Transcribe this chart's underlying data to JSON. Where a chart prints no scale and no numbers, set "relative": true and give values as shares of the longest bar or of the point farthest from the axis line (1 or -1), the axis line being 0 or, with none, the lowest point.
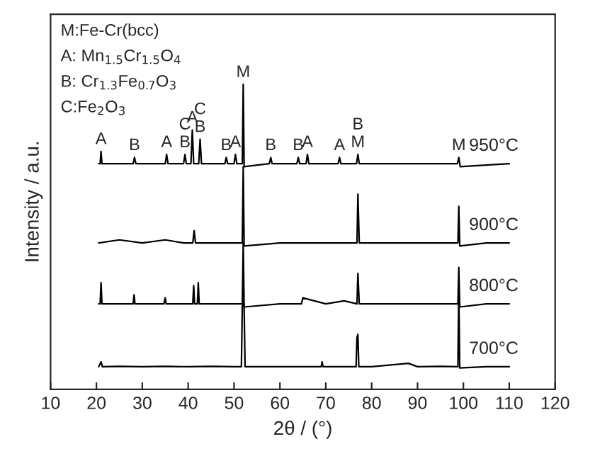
{
  "chart_data": {
    "type": "line",
    "relative": true,
    "xlabel": "2θ / (°)",
    "ylabel": "Intensity / a.u.",
    "xlim": [
      10,
      120
    ],
    "xticks": [
      10,
      20,
      30,
      40,
      50,
      60,
      70,
      80,
      90,
      100,
      110,
      120
    ],
    "grid": false,
    "legend": false,
    "tick_labels": "x",
    "series": [
      {
        "name": "950°C",
        "color": "#000000",
        "x": [
          20.5,
          20.8,
          21,
          21.2,
          28,
          28.3,
          28.6,
          35,
          35.3,
          35.6,
          39.0,
          39.3,
          39.6,
          40.6,
          40.9,
          41.2,
          42.3,
          42.6,
          42.9,
          48,
          48.3,
          48.6,
          50,
          50.3,
          50.6,
          51.8,
          52,
          52.2,
          57.7,
          58,
          58.3,
          63.7,
          64,
          64.3,
          65.7,
          66,
          66.3,
          72.7,
          73,
          73.3,
          76.7,
          77,
          77.3,
          98.7,
          99,
          99.3,
          110
        ],
        "values": [
          0.74,
          0.74,
          0.78,
          0.74,
          0.74,
          0.76,
          0.74,
          0.74,
          0.77,
          0.74,
          0.74,
          0.77,
          0.74,
          0.74,
          0.85,
          0.74,
          0.74,
          0.82,
          0.74,
          0.74,
          0.76,
          0.74,
          0.74,
          0.77,
          0.74,
          0.74,
          1.0,
          0.73,
          0.74,
          0.76,
          0.74,
          0.74,
          0.76,
          0.74,
          0.74,
          0.77,
          0.74,
          0.74,
          0.76,
          0.74,
          0.74,
          0.77,
          0.74,
          0.74,
          0.76,
          0.73,
          0.74
        ]
      },
      {
        "name": "900°C",
        "color": "#000000",
        "x": [
          20.5,
          25,
          30,
          35,
          39,
          41,
          41.3,
          41.6,
          45,
          51.8,
          52,
          52.2,
          60,
          70,
          76.8,
          77,
          77.3,
          85,
          95,
          98.8,
          99,
          99.2,
          105,
          110
        ],
        "values": [
          0.48,
          0.49,
          0.48,
          0.49,
          0.48,
          0.48,
          0.52,
          0.48,
          0.48,
          0.48,
          0.73,
          0.47,
          0.48,
          0.48,
          0.48,
          0.64,
          0.48,
          0.48,
          0.48,
          0.48,
          0.6,
          0.47,
          0.48,
          0.48
        ]
      },
      {
        "name": "800°C",
        "color": "#000000",
        "x": [
          20.5,
          20.8,
          21,
          21.2,
          25,
          28,
          28.2,
          28.4,
          34.7,
          35,
          35.2,
          39,
          41,
          41.2,
          41.4,
          42,
          42.2,
          42.4,
          46,
          51.8,
          52,
          52.2,
          60,
          64.7,
          65,
          70,
          74,
          76.8,
          77,
          77.3,
          85,
          95,
          98.8,
          99,
          99.2,
          105,
          110
        ],
        "values": [
          0.28,
          0.28,
          0.35,
          0.28,
          0.28,
          0.28,
          0.31,
          0.28,
          0.28,
          0.3,
          0.28,
          0.28,
          0.28,
          0.34,
          0.28,
          0.28,
          0.35,
          0.28,
          0.28,
          0.28,
          0.48,
          0.27,
          0.28,
          0.28,
          0.3,
          0.28,
          0.29,
          0.28,
          0.38,
          0.28,
          0.28,
          0.28,
          0.28,
          0.4,
          0.27,
          0.28,
          0.28
        ]
      },
      {
        "name": "700°C",
        "color": "#000000",
        "x": [
          20.5,
          21,
          21.3,
          25,
          30,
          35,
          40,
          45,
          50,
          51.6,
          51.8,
          52,
          52.2,
          52.4,
          60,
          69,
          69.2,
          69.4,
          75,
          76.6,
          76.8,
          77,
          77.2,
          80,
          88,
          90,
          95,
          98.8,
          99,
          99.2,
          105,
          110
        ],
        "values": [
          0.074,
          0.09,
          0.074,
          0.075,
          0.074,
          0.075,
          0.074,
          0.075,
          0.074,
          0.074,
          0.27,
          0.29,
          0.27,
          0.074,
          0.074,
          0.074,
          0.09,
          0.074,
          0.074,
          0.074,
          0.17,
          0.18,
          0.074,
          0.074,
          0.085,
          0.074,
          0.075,
          0.074,
          0.33,
          0.07,
          0.074,
          0.074
        ]
      }
    ],
    "annotations": [
      "M:Fe-Cr(bcc)",
      "A: Mn$_{1.5}$Cr$_{1.5}$O$_{4}$",
      "B: Cr$_{1.3}$Fe$_{0.7}$O$_{3}$",
      "C:Fe$_{2}$O$_{3}$",
      {
        "text": "A",
        "x": 21,
        "y": 0.78
      },
      {
        "text": "B",
        "x": 28.3,
        "y": 0.76
      },
      {
        "text": "A",
        "x": 35.3,
        "y": 0.77
      },
      {
        "text": "B",
        "x": 39.3,
        "y": 0.77
      },
      {
        "text": "C",
        "x": 39.3,
        "y": 0.77
      },
      {
        "text": "A",
        "x": 40.9,
        "y": 0.85
      },
      {
        "text": "B",
        "x": 42.6,
        "y": 0.82
      },
      {
        "text": "C",
        "x": 42.6,
        "y": 0.82
      },
      {
        "text": "B",
        "x": 48.3,
        "y": 0.76
      },
      {
        "text": "A",
        "x": 50.3,
        "y": 0.77
      },
      {
        "text": "M",
        "x": 52,
        "y": 1.0
      },
      {
        "text": "B",
        "x": 58,
        "y": 0.76
      },
      {
        "text": "B",
        "x": 64,
        "y": 0.76
      },
      {
        "text": "A",
        "x": 66,
        "y": 0.77
      },
      {
        "text": "A",
        "x": 73,
        "y": 0.76
      },
      {
        "text": "M",
        "x": 77,
        "y": 0.77
      },
      {
        "text": "B",
        "x": 77,
        "y": 0.77
      },
      {
        "text": "M",
        "x": 99,
        "y": 0.76
      }
    ]
  }
}
